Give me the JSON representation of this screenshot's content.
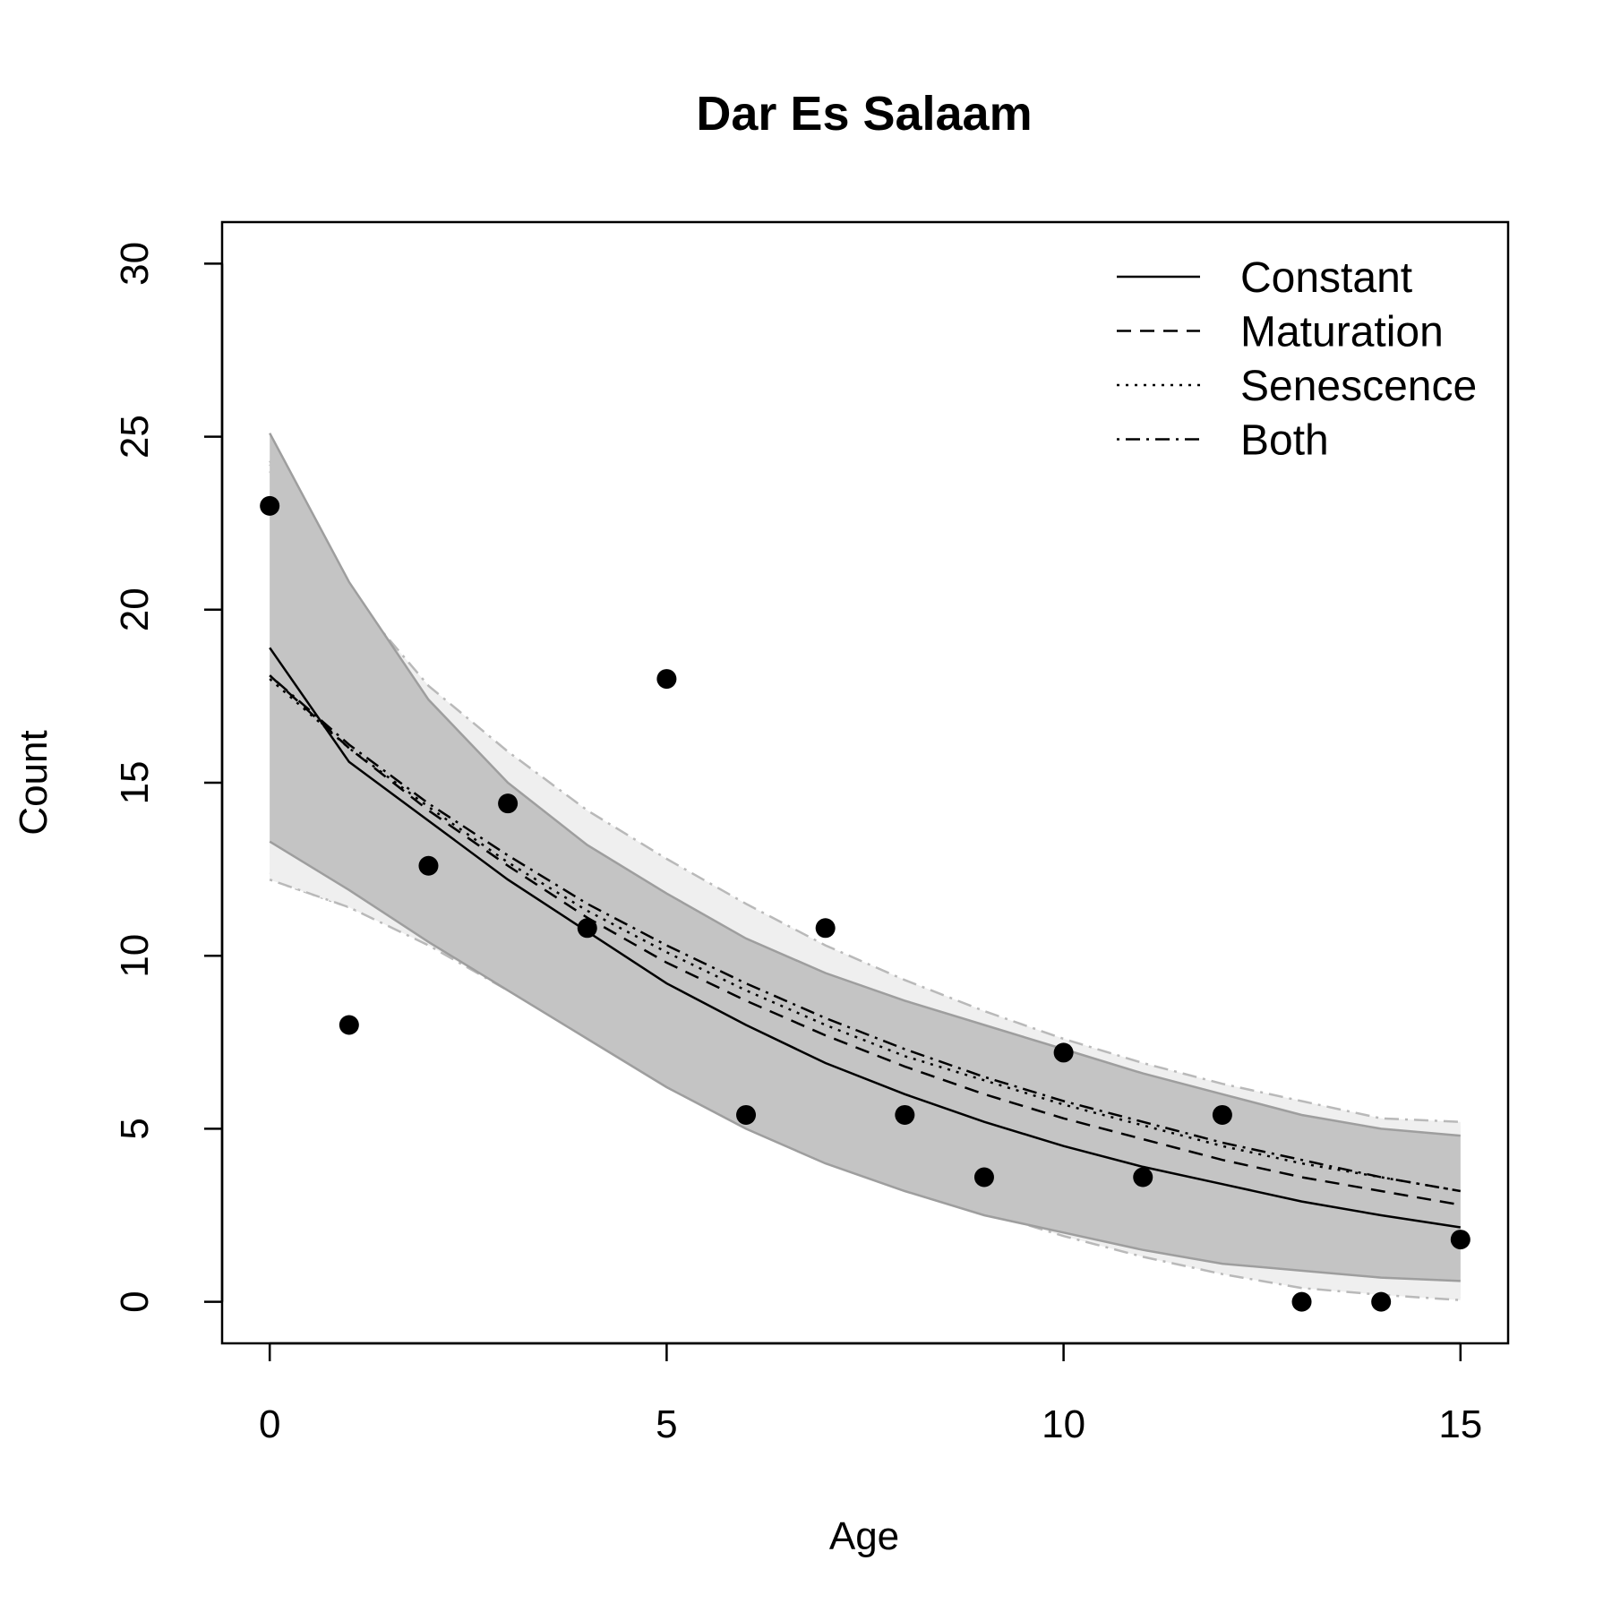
{
  "chart_data": {
    "type": "scatter",
    "title": "Dar Es Salaam",
    "xlabel": "Age",
    "ylabel": "Count",
    "xlim": [
      -0.6,
      15.6
    ],
    "ylim": [
      -1.2,
      31.2
    ],
    "xticks": [
      0,
      5,
      10,
      15
    ],
    "yticks": [
      0,
      5,
      10,
      15,
      20,
      25,
      30
    ],
    "grid": false,
    "legend_position": "top-right",
    "points": {
      "x": [
        0,
        1,
        2,
        3,
        4,
        5,
        6,
        7,
        8,
        9,
        10,
        11,
        12,
        13,
        14,
        15
      ],
      "y": [
        23,
        8,
        12.6,
        14.4,
        10.8,
        18,
        5.4,
        10.8,
        5.4,
        3.6,
        7.2,
        3.6,
        5.4,
        0,
        0,
        1.8
      ]
    },
    "x": [
      0,
      1,
      2,
      3,
      4,
      5,
      6,
      7,
      8,
      9,
      10,
      11,
      12,
      13,
      14,
      15
    ],
    "series": [
      {
        "name": "Constant",
        "line_style": "solid",
        "values": [
          18.9,
          15.6,
          13.9,
          12.2,
          10.7,
          9.2,
          8.0,
          6.9,
          6.0,
          5.2,
          4.5,
          3.9,
          3.4,
          2.9,
          2.5,
          2.15
        ],
        "lower": [
          13.3,
          11.9,
          10.4,
          9.0,
          7.6,
          6.2,
          5.0,
          4.0,
          3.2,
          2.5,
          2.0,
          1.5,
          1.1,
          0.9,
          0.7,
          0.6
        ],
        "upper": [
          25.1,
          20.8,
          17.4,
          15.0,
          13.2,
          11.8,
          10.5,
          9.5,
          8.7,
          8.0,
          7.3,
          6.6,
          6.0,
          5.4,
          5.0,
          4.8
        ]
      },
      {
        "name": "Maturation",
        "line_style": "dashed",
        "values": [
          18.1,
          16.0,
          14.2,
          12.6,
          11.1,
          9.8,
          8.7,
          7.7,
          6.8,
          6.0,
          5.3,
          4.7,
          4.1,
          3.6,
          3.2,
          2.8
        ],
        "lower": [
          12.4,
          11.5,
          10.5,
          9.2,
          7.9,
          6.6,
          5.5,
          4.5,
          3.6,
          2.8,
          2.1,
          1.6,
          1.1,
          0.7,
          0.4,
          0.2
        ],
        "upper": [
          24.2,
          20.6,
          17.6,
          15.5,
          13.8,
          12.3,
          11.1,
          10.0,
          9.0,
          8.1,
          7.4,
          6.7,
          6.1,
          5.5,
          5.0,
          4.95
        ]
      },
      {
        "name": "Senescence",
        "line_style": "dotted",
        "values": [
          18.0,
          16.0,
          14.3,
          12.7,
          11.3,
          10.1,
          9.0,
          8.0,
          7.1,
          6.4,
          5.7,
          5.1,
          4.5,
          4.0,
          3.6,
          3.2
        ],
        "lower": [
          12.2,
          11.4,
          10.4,
          9.1,
          7.8,
          6.5,
          5.4,
          4.4,
          3.5,
          2.7,
          2.0,
          1.4,
          0.9,
          0.5,
          0.3,
          0.1
        ],
        "upper": [
          24.0,
          20.4,
          17.7,
          15.8,
          14.1,
          12.7,
          11.4,
          10.2,
          9.2,
          8.3,
          7.5,
          6.8,
          6.2,
          5.7,
          5.2,
          5.1
        ]
      },
      {
        "name": "Both",
        "line_style": "dotdash",
        "values": [
          18.1,
          16.1,
          14.4,
          12.9,
          11.5,
          10.3,
          9.2,
          8.2,
          7.3,
          6.5,
          5.8,
          5.2,
          4.6,
          4.1,
          3.6,
          3.2
        ],
        "lower": [
          12.2,
          11.4,
          10.3,
          9.0,
          7.7,
          6.4,
          5.3,
          4.3,
          3.4,
          2.6,
          1.9,
          1.3,
          0.8,
          0.4,
          0.2,
          0.05
        ],
        "upper": [
          24.3,
          20.5,
          17.8,
          15.9,
          14.2,
          12.8,
          11.5,
          10.3,
          9.3,
          8.4,
          7.6,
          6.9,
          6.3,
          5.8,
          5.3,
          5.2
        ]
      }
    ]
  },
  "colors": {
    "band_constant": "#c4c4c4",
    "band_other": "#efefef",
    "band_edge_constant": "#9e9e9e",
    "band_edge_other": "#b9b9b9",
    "points": "#000000",
    "lines": "#000000"
  }
}
